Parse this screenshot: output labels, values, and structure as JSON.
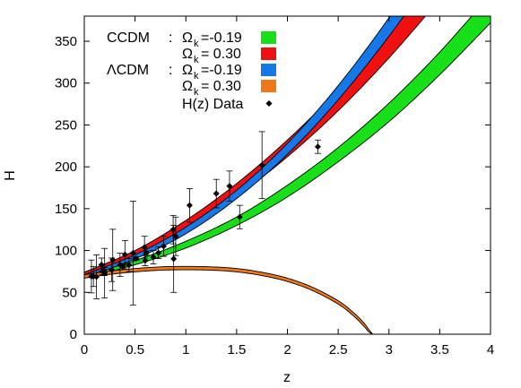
{
  "chart_data": {
    "type": "line",
    "xlabel": "z",
    "ylabel": "H",
    "xlim": [
      0,
      4
    ],
    "ylim": [
      0,
      380
    ],
    "x_ticks": [
      "0",
      "0.5",
      "1",
      "1.5",
      "2",
      "2.5",
      "3",
      "3.5",
      "4"
    ],
    "y_ticks": [
      "0",
      "50",
      "100",
      "150",
      "200",
      "250",
      "300",
      "350"
    ],
    "legend_placement": "top-left",
    "legend": {
      "ccdm_prefix": "CCDM",
      "lcdm_prefix": "ΛCDM",
      "sep": ":",
      "omega": "Ω",
      "omega_sub": "k",
      "v1": "=-0.19",
      "v2": "= 0.30",
      "data_label": "H(z) Data"
    },
    "series": [
      {
        "name": "CCDM : Ωk =-0.19",
        "color": "#18e018",
        "kind": "band",
        "x": [
          0,
          0.5,
          1.0,
          1.5,
          2.0,
          2.5,
          3.0,
          3.5,
          4.0
        ],
        "lo": [
          67,
          83,
          103,
          130,
          164,
          206,
          254,
          310,
          372
        ],
        "hi": [
          70,
          88,
          111,
          140,
          178,
          223,
          276,
          337,
          406
        ]
      },
      {
        "name": "CCDM : Ωk = 0.30",
        "color": "#f01010",
        "kind": "band",
        "x": [
          0,
          0.5,
          1.0,
          1.5,
          2.0,
          2.5,
          3.0,
          3.5
        ],
        "lo": [
          70,
          93,
          125,
          165,
          212,
          267,
          330,
          400
        ],
        "hi": [
          74,
          100,
          136,
          180,
          232,
          292,
          360,
          436
        ]
      },
      {
        "name": "ΛCDM : Ωk =-0.19",
        "color": "#1478e8",
        "kind": "band",
        "x": [
          0,
          0.5,
          1.0,
          1.5,
          2.0,
          2.5,
          3.0,
          3.5
        ],
        "lo": [
          68,
          90,
          120,
          162,
          215,
          280,
          356,
          440
        ],
        "hi": [
          71,
          95,
          128,
          172,
          228,
          297,
          378,
          468
        ]
      },
      {
        "name": "ΛCDM : Ωk = 0.30",
        "color": "#f07818",
        "kind": "band",
        "x": [
          0,
          0.25,
          0.5,
          0.75,
          1.0,
          1.25,
          1.5,
          1.75,
          2.0,
          2.25,
          2.5,
          2.65,
          2.75,
          2.8,
          2.84
        ],
        "lo": [
          67,
          71.5,
          74.5,
          76.5,
          77,
          76.5,
          74.5,
          70,
          63,
          52,
          36,
          22,
          10,
          3,
          0
        ],
        "hi": [
          71,
          75.5,
          78.5,
          80.5,
          81,
          80.5,
          78.5,
          74,
          67,
          56,
          40,
          26,
          14,
          6,
          0
        ]
      }
    ],
    "hz_data": {
      "name": "H(z) Data",
      "points": [
        {
          "z": 0.07,
          "H": 69,
          "err": 19.6
        },
        {
          "z": 0.09,
          "H": 69,
          "err": 12
        },
        {
          "z": 0.12,
          "H": 68.6,
          "err": 26.2
        },
        {
          "z": 0.17,
          "H": 83,
          "err": 8
        },
        {
          "z": 0.179,
          "H": 75,
          "err": 4
        },
        {
          "z": 0.199,
          "H": 75,
          "err": 5
        },
        {
          "z": 0.2,
          "H": 72.9,
          "err": 29.6
        },
        {
          "z": 0.27,
          "H": 77,
          "err": 14
        },
        {
          "z": 0.28,
          "H": 88.8,
          "err": 36.6
        },
        {
          "z": 0.352,
          "H": 83,
          "err": 14
        },
        {
          "z": 0.38,
          "H": 81.5,
          "err": 1.9
        },
        {
          "z": 0.4,
          "H": 95,
          "err": 17
        },
        {
          "z": 0.44,
          "H": 82.6,
          "err": 7.8
        },
        {
          "z": 0.48,
          "H": 97,
          "err": 62
        },
        {
          "z": 0.51,
          "H": 90.4,
          "err": 1.9
        },
        {
          "z": 0.593,
          "H": 104,
          "err": 13
        },
        {
          "z": 0.6,
          "H": 87.9,
          "err": 6.1
        },
        {
          "z": 0.61,
          "H": 97.3,
          "err": 2.1
        },
        {
          "z": 0.68,
          "H": 92,
          "err": 8
        },
        {
          "z": 0.73,
          "H": 97.3,
          "err": 7
        },
        {
          "z": 0.781,
          "H": 105,
          "err": 12
        },
        {
          "z": 0.875,
          "H": 125,
          "err": 17
        },
        {
          "z": 0.88,
          "H": 90,
          "err": 40
        },
        {
          "z": 0.9,
          "H": 117,
          "err": 23
        },
        {
          "z": 1.037,
          "H": 154,
          "err": 20
        },
        {
          "z": 1.3,
          "H": 168,
          "err": 17
        },
        {
          "z": 1.43,
          "H": 177,
          "err": 18
        },
        {
          "z": 1.53,
          "H": 140,
          "err": 14
        },
        {
          "z": 1.75,
          "H": 202,
          "err": 40
        },
        {
          "z": 2.3,
          "H": 224,
          "err": 8
        }
      ]
    }
  }
}
